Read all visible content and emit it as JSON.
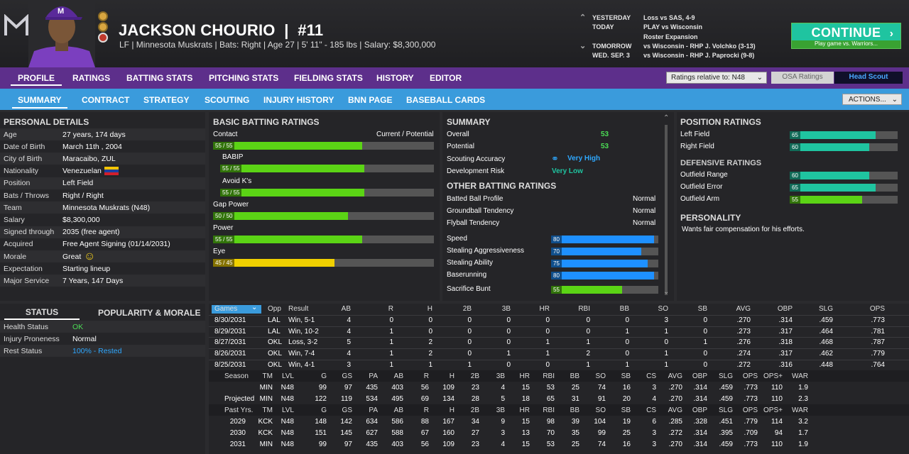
{
  "header": {
    "name": "JACKSON CHOURIO",
    "number": "#11",
    "subtitle": "LF | Minnesota Muskrats  |  Bats: Right  |  Age 27  |  5' 11\" - 185 lbs  |  Salary: $8,300,000"
  },
  "schedule": [
    {
      "day": "YESTERDAY",
      "info": "Loss vs SAS, 4-9"
    },
    {
      "day": "TODAY",
      "info": "PLAY vs Wisconsin"
    },
    {
      "day": "",
      "info": "Roster Expansion"
    },
    {
      "day": "TOMORROW",
      "info": "vs Wisconsin - RHP J. Volchko (3-13)"
    },
    {
      "day": "WED. SEP. 3",
      "info": "vs Wisconsin - RHP J. Paprocki (9-8)"
    }
  ],
  "continue": {
    "label": "CONTINUE",
    "sub": "Play game vs. Warriors..."
  },
  "nav1": [
    "PROFILE",
    "RATINGS",
    "BATTING STATS",
    "PITCHING STATS",
    "FIELDING STATS",
    "HISTORY",
    "EDITOR"
  ],
  "ratings_relative": "Ratings relative to: N48",
  "osa": "OSA Ratings",
  "head_scout": "Head Scout",
  "nav2": [
    "SUMMARY",
    "CONTRACT",
    "STRATEGY",
    "SCOUTING",
    "INJURY HISTORY",
    "BNN PAGE",
    "BASEBALL CARDS"
  ],
  "actions": "ACTIONS...",
  "personal": {
    "title": "PERSONAL DETAILS",
    "rows": [
      [
        "Age",
        "27 years, 174 days"
      ],
      [
        "Date of Birth",
        "March 11th , 2004"
      ],
      [
        "City of Birth",
        "Maracaibo, ZUL"
      ],
      [
        "Nationality",
        "Venezuelan"
      ],
      [
        "Position",
        "Left Field"
      ],
      [
        "Bats / Throws",
        "Right / Right"
      ],
      [
        "Team",
        "Minnesota Muskrats (N48)"
      ],
      [
        "Salary",
        "$8,300,000"
      ],
      [
        "Signed through",
        "2035 (free agent)"
      ],
      [
        "Acquired",
        "Free Agent Signing (01/14/2031)"
      ],
      [
        "Morale",
        "Great"
      ],
      [
        "Expectation",
        "Starting lineup"
      ],
      [
        "Major Service",
        "7 Years, 147 Days"
      ]
    ]
  },
  "status": {
    "tab1": "STATUS",
    "tab2": "POPULARITY & MORALE",
    "rows": [
      [
        "Health Status",
        "OK"
      ],
      [
        "Injury Proneness",
        "Normal"
      ],
      [
        "Rest Status",
        "100% - Rested"
      ]
    ]
  },
  "batting": {
    "title": "BASIC BATTING RATINGS",
    "cur_pot": "Current / Potential",
    "rows": [
      {
        "label": "Contact",
        "text": "55 / 55",
        "value": 55,
        "color": "g",
        "indent": false
      },
      {
        "label": "BABIP",
        "text": "55 / 55",
        "value": 55,
        "color": "g",
        "indent": true
      },
      {
        "label": "Avoid K's",
        "text": "55 / 55",
        "value": 55,
        "color": "g",
        "indent": true
      },
      {
        "label": "Gap Power",
        "text": "50 / 50",
        "value": 50,
        "color": "g",
        "indent": false
      },
      {
        "label": "Power",
        "text": "55 / 55",
        "value": 55,
        "color": "g",
        "indent": false
      },
      {
        "label": "Eye",
        "text": "45 / 45",
        "value": 45,
        "color": "y",
        "indent": false
      }
    ]
  },
  "summary": {
    "title": "SUMMARY",
    "overall_l": "Overall",
    "overall": "53",
    "potential_l": "Potential",
    "potential": "53",
    "scout_l": "Scouting Accuracy",
    "scout": "Very High",
    "dev_l": "Development Risk",
    "dev": "Very Low",
    "other_title": "OTHER BATTING RATINGS",
    "others": [
      [
        "Batted Ball Profile",
        "Normal"
      ],
      [
        "Groundball Tendency",
        "Normal"
      ],
      [
        "Flyball Tendency",
        "Normal"
      ]
    ],
    "speed": [
      {
        "label": "Speed",
        "value": 80,
        "color": "b"
      },
      {
        "label": "Stealing Aggressiveness",
        "value": 70,
        "color": "b"
      },
      {
        "label": "Stealing Ability",
        "value": 75,
        "color": "b"
      },
      {
        "label": "Baserunning",
        "value": 80,
        "color": "b"
      },
      {
        "label": "Sacrifice Bunt",
        "value": 55,
        "color": "g"
      }
    ]
  },
  "position": {
    "title": "POSITION RATINGS",
    "rows": [
      {
        "label": "Left Field",
        "value": 65,
        "color": "t"
      },
      {
        "label": "Right Field",
        "value": 60,
        "color": "t"
      }
    ],
    "def_title": "DEFENSIVE RATINGS",
    "def": [
      {
        "label": "Outfield Range",
        "value": 60,
        "color": "t"
      },
      {
        "label": "Outfield Error",
        "value": 65,
        "color": "t"
      },
      {
        "label": "Outfield Arm",
        "value": 55,
        "color": "g"
      }
    ],
    "pers_title": "PERSONALITY",
    "pers": "Wants fair compensation for his efforts."
  },
  "games": {
    "headers": [
      "Games",
      "Opp",
      "Result",
      "AB",
      "R",
      "H",
      "2B",
      "3B",
      "HR",
      "RBI",
      "BB",
      "SO",
      "SB",
      "AVG",
      "OBP",
      "SLG",
      "OPS"
    ],
    "rows": [
      [
        "8/30/2031",
        "LAL",
        "Win, 5-1",
        "4",
        "0",
        "0",
        "0",
        "0",
        "0",
        "0",
        "0",
        "3",
        "0",
        ".270",
        ".314",
        ".459",
        ".773"
      ],
      [
        "8/29/2031",
        "LAL",
        "Win, 10-2",
        "4",
        "1",
        "0",
        "0",
        "0",
        "0",
        "0",
        "1",
        "1",
        "0",
        ".273",
        ".317",
        ".464",
        ".781"
      ],
      [
        "8/27/2031",
        "OKL",
        "Loss, 3-2",
        "5",
        "1",
        "2",
        "0",
        "0",
        "1",
        "1",
        "0",
        "0",
        "1",
        ".276",
        ".318",
        ".468",
        ".787"
      ],
      [
        "8/26/2031",
        "OKL",
        "Win, 7-4",
        "4",
        "1",
        "2",
        "0",
        "1",
        "1",
        "2",
        "0",
        "1",
        "0",
        ".274",
        ".317",
        ".462",
        ".779"
      ],
      [
        "8/25/2031",
        "OKL",
        "Win, 4-1",
        "3",
        "1",
        "1",
        "1",
        "0",
        "0",
        "1",
        "1",
        "1",
        "0",
        ".272",
        ".316",
        ".448",
        ".764"
      ]
    ]
  },
  "season": {
    "headers": [
      "Season",
      "TM",
      "LVL",
      "G",
      "GS",
      "PA",
      "AB",
      "R",
      "H",
      "2B",
      "3B",
      "HR",
      "RBI",
      "BB",
      "SO",
      "SB",
      "CS",
      "AVG",
      "OBP",
      "SLG",
      "OPS",
      "OPS+",
      "WAR"
    ],
    "rows": [
      [
        "",
        "MIN",
        "N48",
        "99",
        "97",
        "435",
        "403",
        "56",
        "109",
        "23",
        "4",
        "15",
        "53",
        "25",
        "74",
        "16",
        "3",
        ".270",
        ".314",
        ".459",
        ".773",
        "110",
        "1.9"
      ],
      [
        "Projected",
        "MIN",
        "N48",
        "122",
        "119",
        "534",
        "495",
        "69",
        "134",
        "28",
        "5",
        "18",
        "65",
        "31",
        "91",
        "20",
        "4",
        ".270",
        ".314",
        ".459",
        ".773",
        "110",
        "2.3"
      ]
    ],
    "past_headers": [
      "Past Yrs.",
      "TM",
      "LVL",
      "G",
      "GS",
      "PA",
      "AB",
      "R",
      "H",
      "2B",
      "3B",
      "HR",
      "RBI",
      "BB",
      "SO",
      "SB",
      "CS",
      "AVG",
      "OBP",
      "SLG",
      "OPS",
      "OPS+",
      "WAR"
    ],
    "past": [
      [
        "2029",
        "KCK",
        "N48",
        "148",
        "142",
        "634",
        "586",
        "88",
        "167",
        "34",
        "9",
        "15",
        "98",
        "39",
        "104",
        "19",
        "6",
        ".285",
        ".328",
        ".451",
        ".779",
        "114",
        "3.2"
      ],
      [
        "2030",
        "KCK",
        "N48",
        "151",
        "145",
        "627",
        "588",
        "67",
        "160",
        "27",
        "3",
        "13",
        "70",
        "35",
        "99",
        "25",
        "3",
        ".272",
        ".314",
        ".395",
        ".709",
        "94",
        "1.7"
      ],
      [
        "2031",
        "MIN",
        "N48",
        "99",
        "97",
        "435",
        "403",
        "56",
        "109",
        "23",
        "4",
        "15",
        "53",
        "25",
        "74",
        "16",
        "3",
        ".270",
        ".314",
        ".459",
        ".773",
        "110",
        "1.9"
      ]
    ]
  }
}
